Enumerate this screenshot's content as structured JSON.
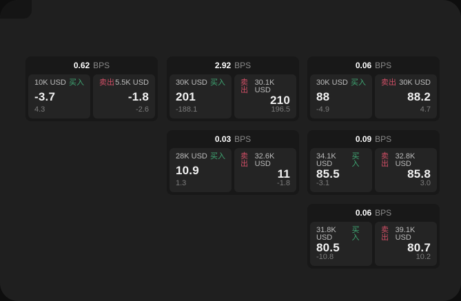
{
  "labels": {
    "bps_unit": "BPS",
    "buy": "买入",
    "sell": "卖出"
  },
  "colors": {
    "page_bg": "#1f1f1f",
    "card_bg": "#181818",
    "panel_bg": "#242424",
    "buy_green": "#3fa874",
    "sell_red": "#d14f66",
    "value_white": "#f2f2f2",
    "label_gray": "#bdbdbd",
    "sub_gray": "#7d7d7d"
  },
  "cards": [
    {
      "bps": "0.62",
      "row": 0,
      "col": 0,
      "buy": {
        "size": "10K USD",
        "price": "-3.7",
        "change": "4.3"
      },
      "sell": {
        "size": "5.5K USD",
        "price": "-1.8",
        "change": "-2.6"
      }
    },
    {
      "bps": "2.92",
      "row": 0,
      "col": 1,
      "buy": {
        "size": "30K USD",
        "price": "201",
        "change": "-188.1"
      },
      "sell": {
        "size": "30.1K USD",
        "price": "210",
        "change": "196.5"
      }
    },
    {
      "bps": "0.06",
      "row": 0,
      "col": 2,
      "buy": {
        "size": "30K USD",
        "price": "88",
        "change": "-4.9"
      },
      "sell": {
        "size": "30K USD",
        "price": "88.2",
        "change": "4.7"
      }
    },
    {
      "bps": "0.03",
      "row": 1,
      "col": 1,
      "buy": {
        "size": "28K USD",
        "price": "10.9",
        "change": "1.3"
      },
      "sell": {
        "size": "32.6K USD",
        "price": "11",
        "change": "-1.8"
      }
    },
    {
      "bps": "0.09",
      "row": 1,
      "col": 2,
      "buy": {
        "size": "34.1K USD",
        "price": "85.5",
        "change": "-3.1"
      },
      "sell": {
        "size": "32.8K USD",
        "price": "85.8",
        "change": "3.0"
      }
    },
    {
      "bps": "0.06",
      "row": 2,
      "col": 2,
      "buy": {
        "size": "31.8K USD",
        "price": "80.5",
        "change": "-10.8"
      },
      "sell": {
        "size": "39.1K USD",
        "price": "80.7",
        "change": "10.2"
      }
    }
  ]
}
